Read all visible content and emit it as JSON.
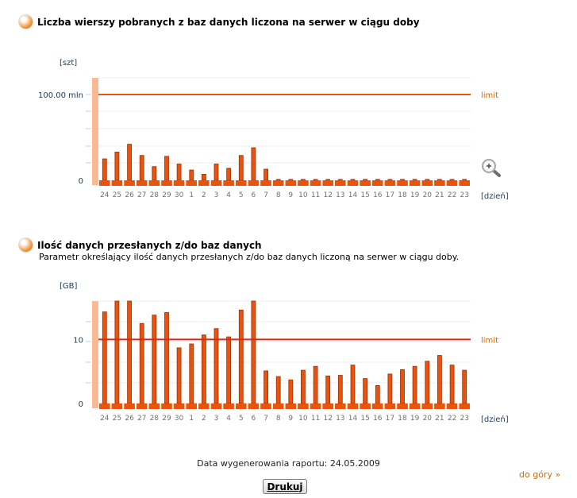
{
  "charts": {
    "rows": {
      "title": "Liczba wierszy pobranych z baz danych liczona na serwer w ciągu doby",
      "unit_label": "[szt]",
      "x_axis_label": "[dzień]",
      "limit_label": "limit",
      "limit_tick_label": "100.00 mln",
      "zero_label": "0"
    },
    "data_volume": {
      "title": "Ilość danych przesłanych z/do baz danych",
      "subtitle": "Parametr określający ilość danych przesłanych z/do baz danych liczoną na serwer w ciągu doby.",
      "unit_label": "[GB]",
      "x_axis_label": "[dzień]",
      "limit_label": "limit",
      "limit_tick_label": "10",
      "zero_label": "0"
    }
  },
  "footer": {
    "date_text": "Data wygenerowania raportu: 24.05.2009",
    "print_label": "Drukuj",
    "top_link": "do góry »"
  },
  "colors": {
    "bar": "#e8530e",
    "limit": "#e8530e",
    "limit2": "#d82b16",
    "shade": "#fbb992"
  },
  "chart_data": [
    {
      "type": "bar",
      "title": "Liczba wierszy pobranych z baz danych liczona na serwer w ciągu doby",
      "xlabel": "[dzień]",
      "ylabel": "[szt]",
      "y_unit": "mln",
      "ylim": [
        0,
        100
      ],
      "limit": 100,
      "categories": [
        "24",
        "25",
        "26",
        "27",
        "28",
        "29",
        "30",
        "1",
        "2",
        "3",
        "4",
        "5",
        "6",
        "7",
        "8",
        "9",
        "10",
        "11",
        "12",
        "13",
        "14",
        "15",
        "16",
        "17",
        "18",
        "19",
        "20",
        "21",
        "22",
        "23"
      ],
      "values": [
        25,
        33,
        42,
        29,
        16,
        28,
        19,
        12,
        7,
        19,
        14,
        29,
        38,
        13,
        1,
        1,
        1,
        1,
        1,
        1,
        1,
        1,
        1,
        1,
        1,
        1,
        1,
        1,
        1,
        1
      ]
    },
    {
      "type": "bar",
      "title": "Ilość danych przesłanych z/do baz danych",
      "xlabel": "[dzień]",
      "ylabel": "[GB]",
      "ylim": [
        0,
        16
      ],
      "limit": 10,
      "categories": [
        "24",
        "25",
        "26",
        "27",
        "28",
        "29",
        "30",
        "1",
        "2",
        "3",
        "4",
        "5",
        "6",
        "7",
        "8",
        "9",
        "10",
        "11",
        "12",
        "13",
        "14",
        "15",
        "16",
        "17",
        "18",
        "19",
        "20",
        "21",
        "22",
        "23"
      ],
      "values": [
        14.3,
        16,
        16,
        12.5,
        13.8,
        14.2,
        8.7,
        9.3,
        10.7,
        11.7,
        10.4,
        14.6,
        16,
        5.1,
        4.2,
        3.7,
        5.2,
        5.8,
        4.3,
        4.4,
        6,
        3.9,
        2.8,
        4.6,
        5.3,
        5.8,
        6.6,
        7.5,
        6,
        5.2
      ]
    }
  ]
}
